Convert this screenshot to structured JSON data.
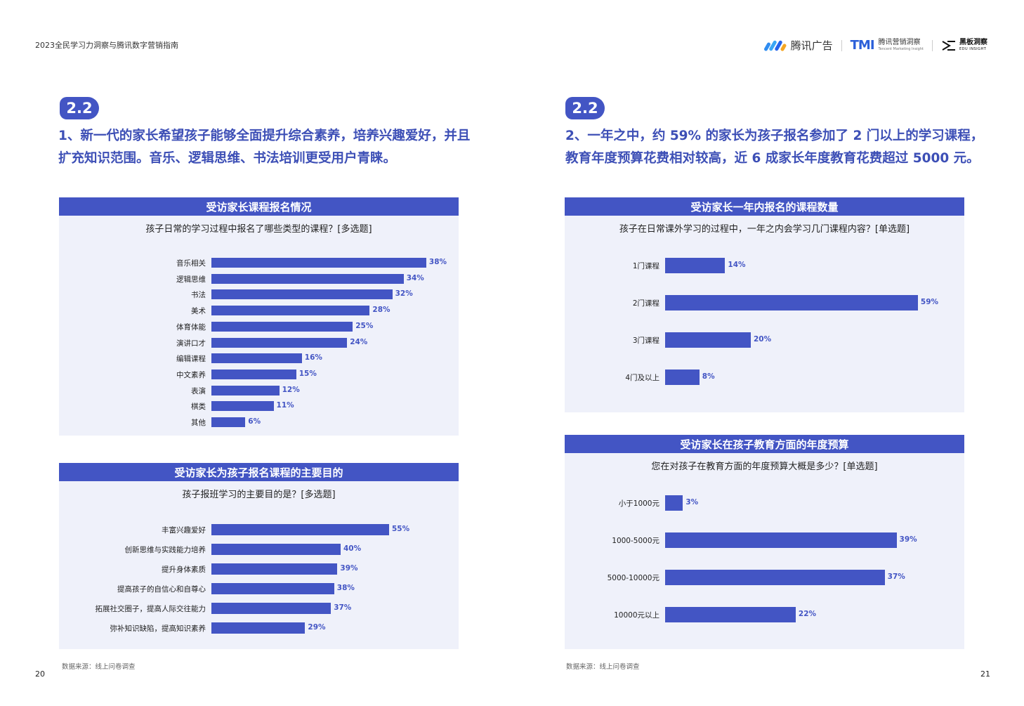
{
  "header": {
    "doc_title": "2023全民学习力洞察与腾讯数字营销指南",
    "logo1_text": "腾讯广告",
    "logo2_mark": "TMI",
    "logo2_cn": "腾讯营销洞察",
    "logo2_en": "Tencent Marketing Insight",
    "logo3_cn": "黑板洞察",
    "logo3_en": "EDU INSIGHT"
  },
  "left": {
    "badge": "2.2",
    "headline_line1": "1、新一代的家长希望孩子能够全面提升综合素养，培养兴趣爱好，并且",
    "headline_line2": "扩充知识范围。音乐、逻辑思维、书法培训更受用户青睐。",
    "source": "数据来源：线上问卷调查",
    "page_number": "20"
  },
  "right": {
    "badge": "2.2",
    "headline_line1": "2、一年之中，约 59% 的家长为孩子报名参加了 2 门以上的学习课程，",
    "headline_line2": "教育年度预算花费相对较高，近 6 成家长年度教育花费超过 5000 元。",
    "source": "数据来源：线上问卷调查",
    "page_number": "21"
  },
  "colors": {
    "accent": "#4355c4",
    "panel_bg": "#eff1fa",
    "headline": "#3d4fb6"
  },
  "chart_data": [
    {
      "type": "bar",
      "orientation": "horizontal",
      "title": "受访家长课程报名情况",
      "subtitle": "孩子日常的学习过程中报名了哪些类型的课程？[多选题]",
      "categories": [
        "音乐相关",
        "逻辑思维",
        "书法",
        "美术",
        "体育体能",
        "演讲口才",
        "编辑课程",
        "中文素养",
        "表演",
        "棋类",
        "其他"
      ],
      "values": [
        38,
        34,
        32,
        28,
        25,
        24,
        16,
        15,
        12,
        11,
        6
      ],
      "value_labels": [
        "38%",
        "34%",
        "32%",
        "28%",
        "25%",
        "24%",
        "16%",
        "15%",
        "12%",
        "11%",
        "6%"
      ]
    },
    {
      "type": "bar",
      "orientation": "horizontal",
      "title": "受访家长为孩子报名课程的主要目的",
      "subtitle": "孩子报班学习的主要目的是？[多选题]",
      "categories": [
        "丰富兴趣爱好",
        "创新思维与实践能力培养",
        "提升身体素质",
        "提高孩子的自信心和自尊心",
        "拓展社交圈子，提高人际交往能力",
        "弥补知识缺陷，提高知识素养"
      ],
      "values": [
        55,
        40,
        39,
        38,
        37,
        29
      ],
      "value_labels": [
        "55%",
        "40%",
        "39%",
        "38%",
        "37%",
        "29%"
      ]
    },
    {
      "type": "bar",
      "orientation": "horizontal",
      "title": "受访家长一年内报名的课程数量",
      "subtitle": "孩子在日常课外学习的过程中，一年之内会学习几门课程内容？[单选题]",
      "categories": [
        "1门课程",
        "2门课程",
        "3门课程",
        "4门及以上"
      ],
      "values": [
        14,
        59,
        20,
        8
      ],
      "value_labels": [
        "14%",
        "59%",
        "20%",
        "8%"
      ]
    },
    {
      "type": "bar",
      "orientation": "horizontal",
      "title": "受访家长在孩子教育方面的年度预算",
      "subtitle": "您在对孩子在教育方面的年度预算大概是多少？[单选题]",
      "categories": [
        "小于1000元",
        "1000-5000元",
        "5000-10000元",
        "10000元以上"
      ],
      "values": [
        3,
        39,
        37,
        22
      ],
      "value_labels": [
        "3%",
        "39%",
        "37%",
        "22%"
      ]
    }
  ]
}
